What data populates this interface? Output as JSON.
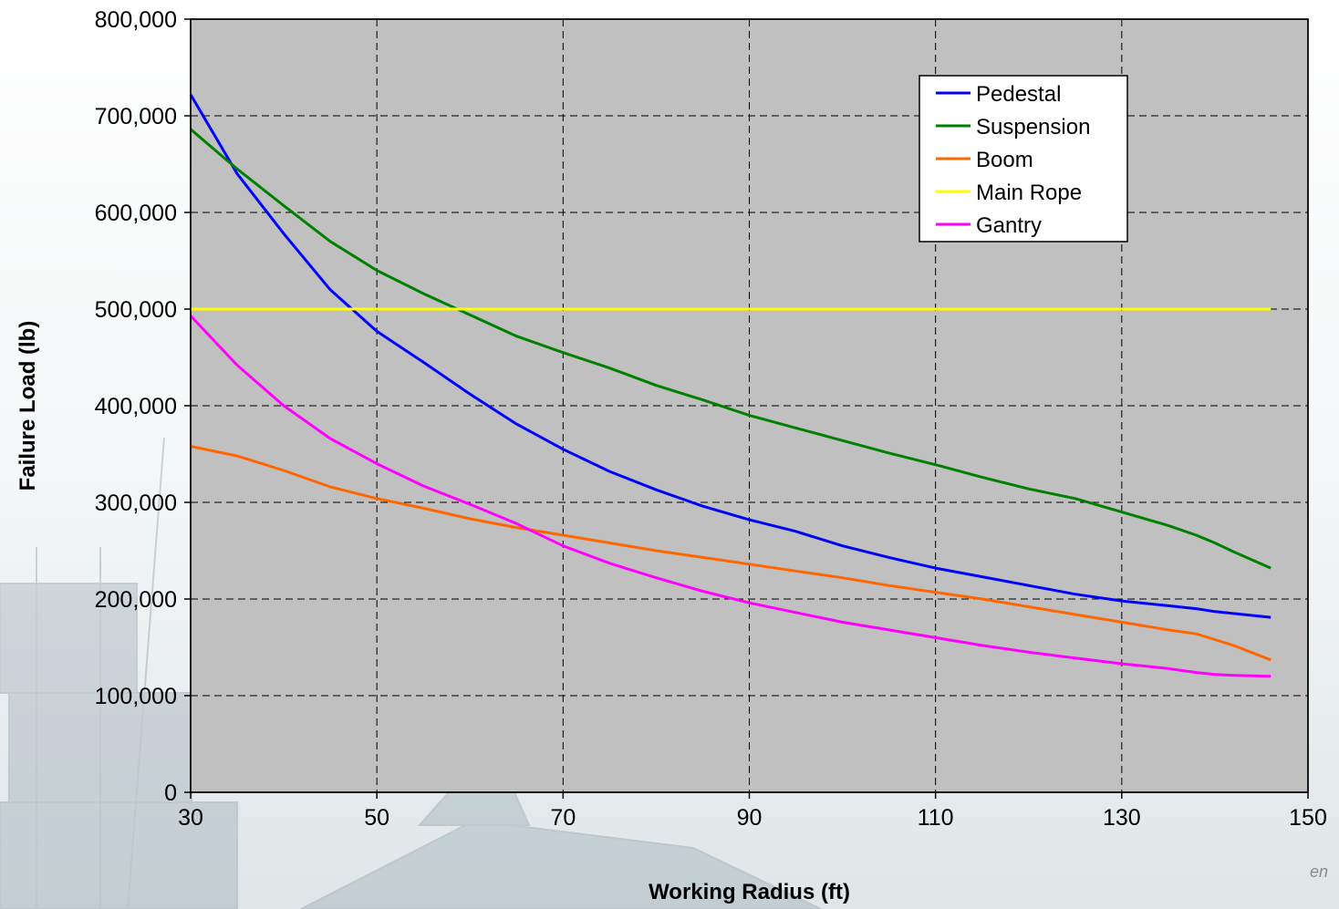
{
  "colors": {
    "plot_background": "#c0c0c0",
    "grid": "#000000",
    "Pedestal": "#0000ff",
    "Suspension": "#008000",
    "Boom": "#ff6600",
    "Main Rope": "#ffff00",
    "Gantry": "#ff00ff"
  },
  "watermark_text": "en",
  "chart_data": {
    "type": "line",
    "title": "",
    "xlabel": "Working Radius (ft)",
    "ylabel": "Failure Load (lb)",
    "xlim": [
      30,
      150
    ],
    "ylim": [
      0,
      800000
    ],
    "x_ticks": [
      "30",
      "50",
      "70",
      "90",
      "110",
      "130",
      "150"
    ],
    "y_ticks": [
      "0",
      "100,000",
      "200,000",
      "300,000",
      "400,000",
      "500,000",
      "600,000",
      "700,000",
      "800,000"
    ],
    "grid": true,
    "legend_position": "top-right",
    "x": [
      30,
      35,
      40,
      45,
      50,
      55,
      60,
      65,
      70,
      75,
      80,
      85,
      90,
      95,
      100,
      105,
      110,
      115,
      120,
      125,
      130,
      135,
      138,
      140,
      142,
      146
    ],
    "series": [
      {
        "name": "Pedestal",
        "values": [
          722000,
          640000,
          578000,
          520000,
          477000,
          445000,
          412000,
          381000,
          355000,
          332000,
          313000,
          296000,
          282000,
          270000,
          255000,
          243000,
          232000,
          223000,
          214000,
          205000,
          198000,
          193000,
          190000,
          187000,
          185000,
          181000
        ]
      },
      {
        "name": "Suspension",
        "values": [
          686000,
          645000,
          607000,
          570000,
          540000,
          516000,
          494000,
          472000,
          455000,
          439000,
          421000,
          406000,
          390000,
          377000,
          364000,
          351000,
          339000,
          326000,
          314000,
          304000,
          290000,
          276000,
          266000,
          258000,
          249000,
          232000
        ]
      },
      {
        "name": "Boom",
        "values": [
          358000,
          348000,
          333000,
          316000,
          304000,
          294000,
          283000,
          274000,
          266000,
          258000,
          250000,
          243000,
          236000,
          229000,
          222000,
          214000,
          207000,
          200000,
          192000,
          184000,
          176000,
          168000,
          164000,
          158000,
          152000,
          137000
        ]
      },
      {
        "name": "Main Rope",
        "values": [
          500000,
          500000,
          500000,
          500000,
          500000,
          500000,
          500000,
          500000,
          500000,
          500000,
          500000,
          500000,
          500000,
          500000,
          500000,
          500000,
          500000,
          500000,
          500000,
          500000,
          500000,
          500000,
          500000,
          500000,
          500000,
          500000
        ]
      },
      {
        "name": "Gantry",
        "values": [
          493000,
          442000,
          400000,
          366000,
          340000,
          317000,
          298000,
          278000,
          255000,
          237000,
          222000,
          208000,
          196000,
          186000,
          176000,
          168000,
          160000,
          152000,
          145000,
          139000,
          133000,
          128000,
          124000,
          122000,
          121000,
          120000
        ]
      }
    ]
  }
}
